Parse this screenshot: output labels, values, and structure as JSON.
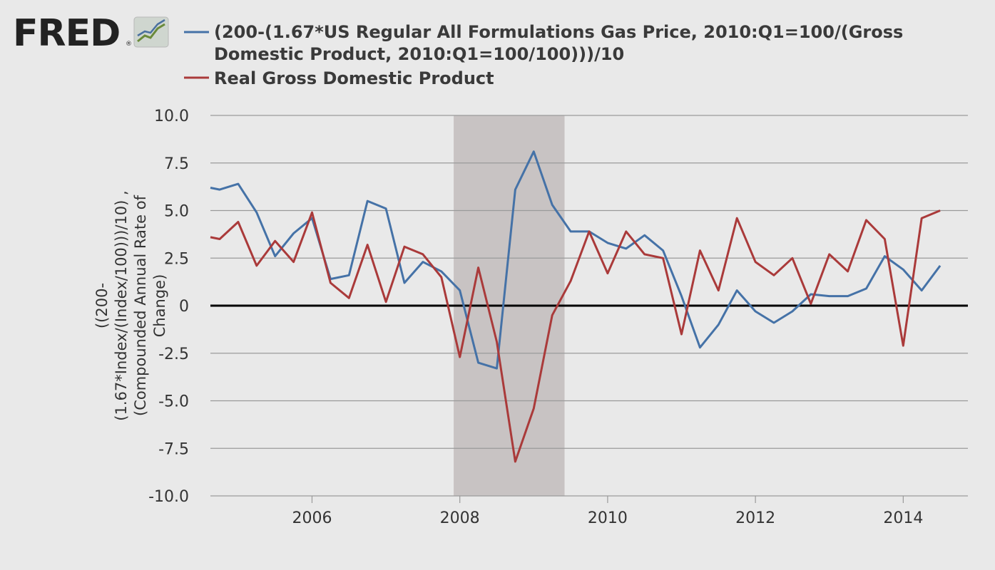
{
  "logo": {
    "text": "FRED",
    "registered": "®",
    "icon": "line-chart-icon"
  },
  "chart_data": {
    "type": "line",
    "legend_position": "top",
    "ylabel_lines": [
      "((200-",
      "(1.67*Index/(Index/100)))/10) ,",
      "(Compounded Annual Rate of",
      "Change)"
    ],
    "xlabel": "",
    "ylim": [
      -10,
      10
    ],
    "xlim": [
      2004.625,
      2014.875
    ],
    "yticks": [
      10,
      7.5,
      5,
      2.5,
      0,
      -2.5,
      -5,
      -7.5,
      -10
    ],
    "ytick_labels": [
      "10.0",
      "7.5",
      "5.0",
      "2.5",
      "0",
      "-2.5",
      "-5.0",
      "-7.5",
      "-10.0"
    ],
    "xticks": [
      2006,
      2008,
      2010,
      2012,
      2014
    ],
    "xtick_labels": [
      "2006",
      "2008",
      "2010",
      "2012",
      "2014"
    ],
    "grid": true,
    "zero_line": true,
    "recession_shading": [
      [
        2007.917,
        2009.417
      ]
    ],
    "x": [
      2004.625,
      2004.75,
      2005.0,
      2005.25,
      2005.5,
      2005.75,
      2006.0,
      2006.25,
      2006.5,
      2006.75,
      2007.0,
      2007.25,
      2007.5,
      2007.75,
      2008.0,
      2008.25,
      2008.5,
      2008.75,
      2009.0,
      2009.25,
      2009.5,
      2009.75,
      2010.0,
      2010.25,
      2010.5,
      2010.75,
      2011.0,
      2011.25,
      2011.5,
      2011.75,
      2012.0,
      2012.25,
      2012.5,
      2012.75,
      2013.0,
      2013.25,
      2013.5,
      2013.75,
      2014.0,
      2014.25,
      2014.5
    ],
    "series": [
      {
        "name": "(200-(1.67*US Regular All Formulations Gas Price, 2010:Q1=100/(Gross Domestic Product, 2010:Q1=100/100)))/10",
        "legend_lines": [
          "(200-(1.67*US Regular All Formulations Gas Price, 2010:Q1=100/(Gross",
          "Domestic Product, 2010:Q1=100/100)))/10"
        ],
        "color": "#4572a7",
        "values": [
          6.2,
          6.1,
          6.4,
          4.9,
          2.6,
          3.8,
          4.6,
          1.4,
          1.6,
          5.5,
          5.1,
          1.2,
          2.3,
          1.8,
          0.8,
          -3.0,
          -3.3,
          6.1,
          8.1,
          5.3,
          3.9,
          3.9,
          3.3,
          3.0,
          3.7,
          2.9,
          0.5,
          -2.2,
          -1.0,
          0.8,
          -0.3,
          -0.9,
          -0.3,
          0.6,
          0.5,
          0.5,
          0.9,
          2.6,
          1.9,
          0.8,
          2.1
        ]
      },
      {
        "name": "Real Gross Domestic Product",
        "legend_lines": [
          "Real Gross Domestic Product"
        ],
        "color": "#aa3a3a",
        "values": [
          3.6,
          3.5,
          4.4,
          2.1,
          3.4,
          2.3,
          4.9,
          1.2,
          0.4,
          3.2,
          0.2,
          3.1,
          2.7,
          1.5,
          -2.7,
          2.0,
          -1.9,
          -8.2,
          -5.4,
          -0.5,
          1.3,
          3.9,
          1.7,
          3.9,
          2.7,
          2.5,
          -1.5,
          2.9,
          0.8,
          4.6,
          2.3,
          1.6,
          2.5,
          0.1,
          2.7,
          1.8,
          4.5,
          3.5,
          -2.1,
          4.6,
          5.0
        ]
      }
    ]
  }
}
